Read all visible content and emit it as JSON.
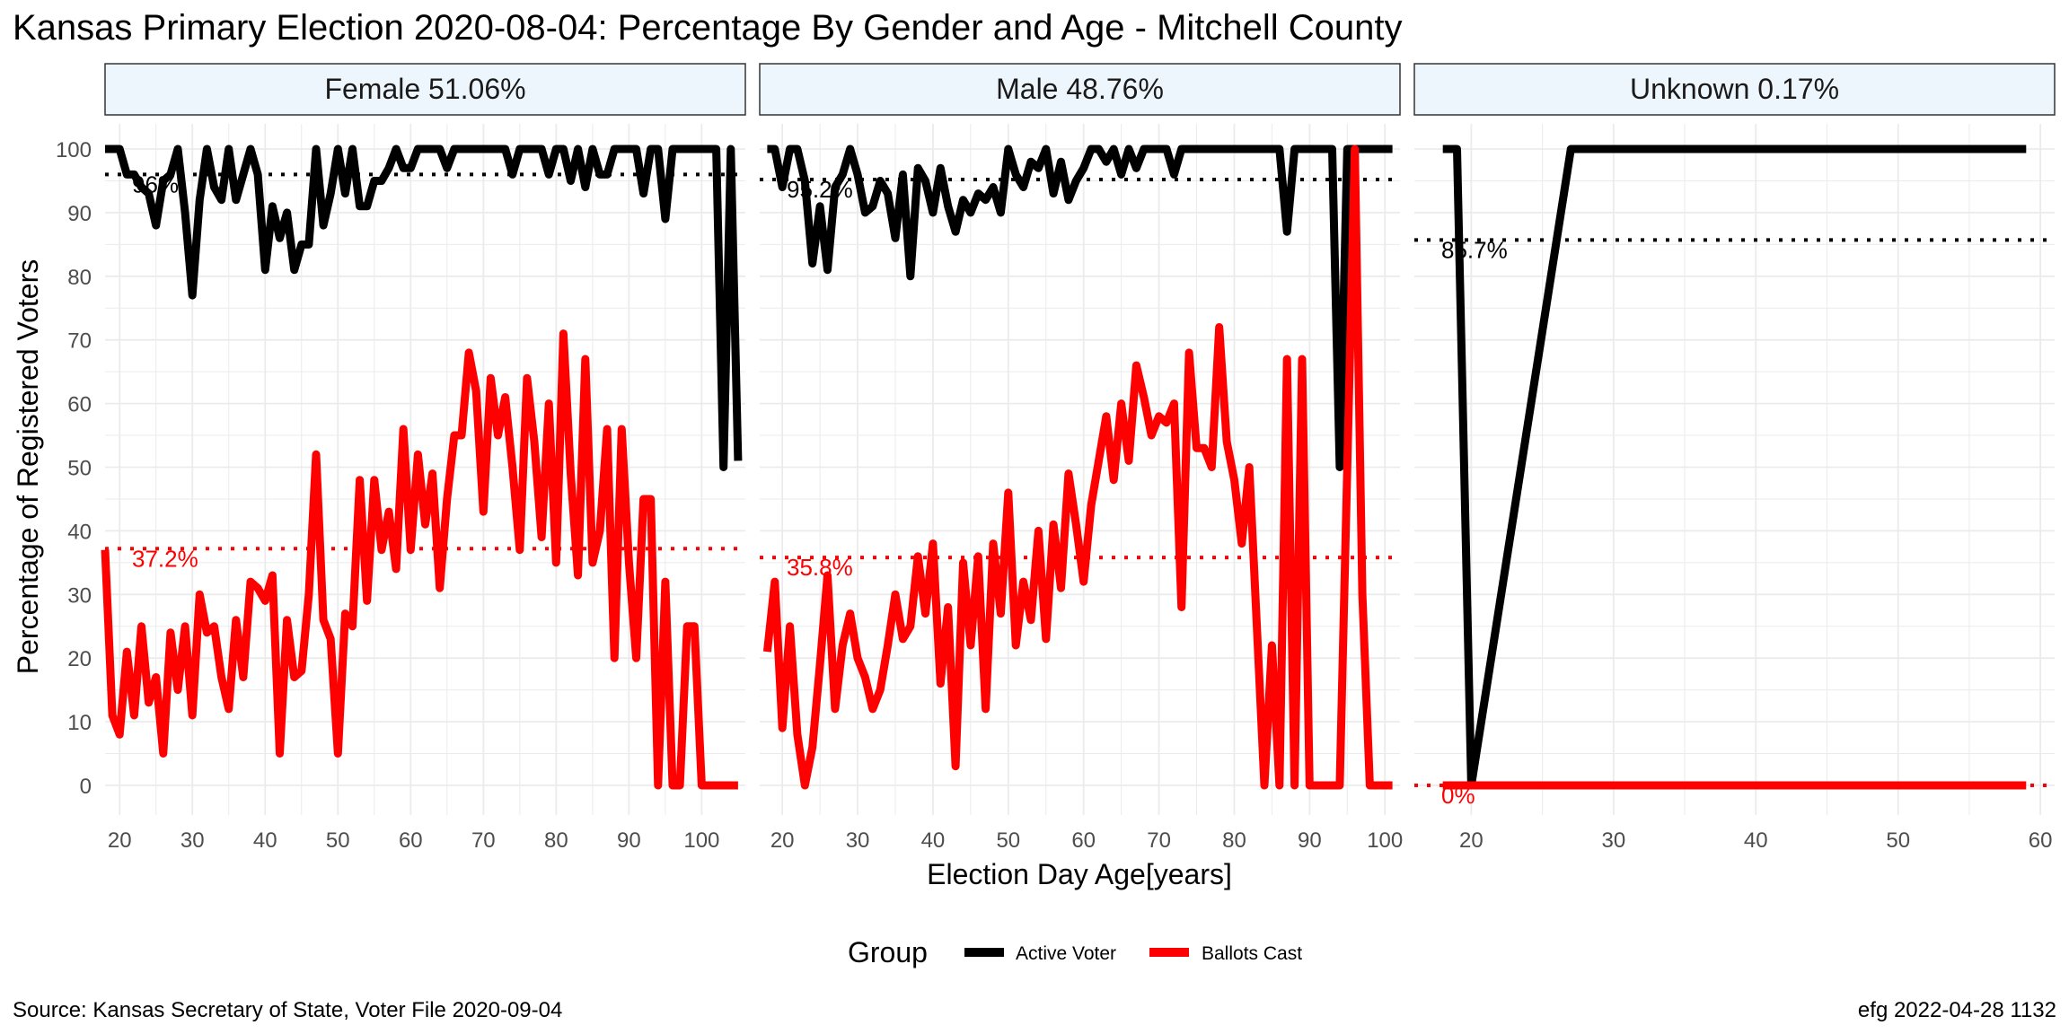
{
  "title": "Kansas Primary Election 2020-08-04:  Percentage By Gender and Age - Mitchell County",
  "caption_left": "Source:  Kansas Secretary of State, Voter File  2020-09-04",
  "caption_right": "efg 2022-04-28 1132",
  "colors": {
    "active": "#000000",
    "ballots": "#ff0000",
    "strip_fill": "#eef6fd",
    "grid": "#ebebeb"
  },
  "chart_data": {
    "type": "line",
    "xlabel": "Election Day Age[years]",
    "ylabel": "Percentage of Registered Voters",
    "ylim": [
      0,
      100
    ],
    "yticks": [
      0,
      10,
      20,
      30,
      40,
      50,
      60,
      70,
      80,
      90,
      100
    ],
    "grid": true,
    "legend": {
      "title": "Group",
      "position": "bottom",
      "entries": [
        "Active Voter",
        "Ballots Cast"
      ]
    },
    "panels": [
      {
        "label": "Female 51.06%",
        "xlim": [
          18,
          106
        ],
        "xticks": [
          20,
          30,
          40,
          50,
          60,
          70,
          80,
          90,
          100
        ],
        "ref_lines": [
          {
            "series": "Active Voter",
            "value": 96,
            "label": "96%"
          },
          {
            "series": "Ballots Cast",
            "value": 37.2,
            "label": "37.2%"
          }
        ],
        "series": [
          {
            "name": "Active Voter",
            "x": [
              18,
              19,
              20,
              21,
              22,
              23,
              24,
              25,
              26,
              27,
              28,
              29,
              30,
              31,
              32,
              33,
              34,
              35,
              36,
              37,
              38,
              39,
              40,
              41,
              42,
              43,
              44,
              45,
              46,
              47,
              48,
              49,
              50,
              51,
              52,
              53,
              54,
              55,
              56,
              57,
              58,
              59,
              60,
              61,
              62,
              63,
              64,
              65,
              66,
              67,
              68,
              69,
              70,
              71,
              72,
              73,
              74,
              75,
              76,
              77,
              78,
              79,
              80,
              81,
              82,
              83,
              84,
              85,
              86,
              87,
              88,
              89,
              90,
              91,
              92,
              93,
              94,
              95,
              96,
              97,
              98,
              99,
              100,
              101,
              102,
              103,
              104,
              105
            ],
            "y": [
              100,
              100,
              100,
              96,
              96,
              94,
              93,
              88,
              95,
              96,
              100,
              90,
              77,
              92,
              100,
              94,
              92,
              100,
              92,
              96,
              100,
              96,
              81,
              91,
              86,
              90,
              81,
              85,
              85,
              100,
              88,
              93,
              100,
              93,
              100,
              91,
              91,
              95,
              95,
              97,
              100,
              97,
              97,
              100,
              100,
              100,
              100,
              97,
              100,
              100,
              100,
              100,
              100,
              100,
              100,
              100,
              96,
              100,
              100,
              100,
              100,
              96,
              100,
              100,
              95,
              100,
              94,
              100,
              96,
              96,
              100,
              100,
              100,
              100,
              93,
              100,
              100,
              89,
              100,
              100,
              100,
              100,
              100,
              100,
              100,
              50,
              100,
              51
            ]
          },
          {
            "name": "Ballots Cast",
            "x": [
              18,
              19,
              20,
              21,
              22,
              23,
              24,
              25,
              26,
              27,
              28,
              29,
              30,
              31,
              32,
              33,
              34,
              35,
              36,
              37,
              38,
              39,
              40,
              41,
              42,
              43,
              44,
              45,
              46,
              47,
              48,
              49,
              50,
              51,
              52,
              53,
              54,
              55,
              56,
              57,
              58,
              59,
              60,
              61,
              62,
              63,
              64,
              65,
              66,
              67,
              68,
              69,
              70,
              71,
              72,
              73,
              74,
              75,
              76,
              77,
              78,
              79,
              80,
              81,
              82,
              83,
              84,
              85,
              86,
              87,
              88,
              89,
              90,
              91,
              92,
              93,
              94,
              95,
              96,
              97,
              98,
              99,
              100,
              101,
              102,
              103,
              104,
              105
            ],
            "y": [
              37,
              11,
              8,
              21,
              11,
              25,
              13,
              17,
              5,
              24,
              15,
              25,
              11,
              30,
              24,
              25,
              17,
              12,
              26,
              17,
              32,
              31,
              29,
              33,
              5,
              26,
              17,
              18,
              30,
              52,
              26,
              23,
              5,
              27,
              25,
              48,
              29,
              48,
              37,
              43,
              34,
              56,
              37,
              52,
              41,
              49,
              31,
              45,
              55,
              55,
              68,
              62,
              43,
              64,
              55,
              61,
              50,
              37,
              64,
              54,
              39,
              60,
              35,
              71,
              49,
              33,
              67,
              35,
              40,
              56,
              20,
              56,
              35,
              20,
              45,
              45,
              0,
              32,
              0,
              0,
              25,
              25,
              0,
              0,
              0,
              0,
              0,
              0
            ]
          }
        ]
      },
      {
        "label": "Male 48.76%",
        "xlim": [
          17,
          102
        ],
        "xticks": [
          20,
          30,
          40,
          50,
          60,
          70,
          80,
          90,
          100
        ],
        "ref_lines": [
          {
            "series": "Active Voter",
            "value": 95.2,
            "label": "95.2%"
          },
          {
            "series": "Ballots Cast",
            "value": 35.8,
            "label": "35.8%"
          }
        ],
        "series": [
          {
            "name": "Active Voter",
            "x": [
              18,
              19,
              20,
              21,
              22,
              23,
              24,
              25,
              26,
              27,
              28,
              29,
              30,
              31,
              32,
              33,
              34,
              35,
              36,
              37,
              38,
              39,
              40,
              41,
              42,
              43,
              44,
              45,
              46,
              47,
              48,
              49,
              50,
              51,
              52,
              53,
              54,
              55,
              56,
              57,
              58,
              59,
              60,
              61,
              62,
              63,
              64,
              65,
              66,
              67,
              68,
              69,
              70,
              71,
              72,
              73,
              74,
              75,
              76,
              77,
              78,
              79,
              80,
              81,
              82,
              83,
              84,
              85,
              86,
              87,
              88,
              89,
              90,
              91,
              92,
              93,
              94,
              95,
              96,
              97,
              98,
              99,
              100,
              101
            ],
            "y": [
              100,
              100,
              94,
              100,
              100,
              95,
              82,
              91,
              81,
              94,
              96,
              100,
              96,
              90,
              91,
              95,
              93,
              86,
              96,
              80,
              97,
              95,
              90,
              97,
              91,
              87,
              92,
              90,
              93,
              92,
              94,
              90,
              100,
              96,
              94,
              98,
              97,
              100,
              93,
              98,
              92,
              95,
              97,
              100,
              100,
              98,
              100,
              96,
              100,
              97,
              100,
              100,
              100,
              100,
              96,
              100,
              100,
              100,
              100,
              100,
              100,
              100,
              100,
              100,
              100,
              100,
              100,
              100,
              100,
              87,
              100,
              100,
              100,
              100,
              100,
              100,
              50,
              100,
              100,
              100,
              100,
              100,
              100,
              100
            ]
          },
          {
            "name": "Ballots Cast",
            "x": [
              18,
              19,
              20,
              21,
              22,
              23,
              24,
              25,
              26,
              27,
              28,
              29,
              30,
              31,
              32,
              33,
              34,
              35,
              36,
              37,
              38,
              39,
              40,
              41,
              42,
              43,
              44,
              45,
              46,
              47,
              48,
              49,
              50,
              51,
              52,
              53,
              54,
              55,
              56,
              57,
              58,
              59,
              60,
              61,
              62,
              63,
              64,
              65,
              66,
              67,
              68,
              69,
              70,
              71,
              72,
              73,
              74,
              75,
              76,
              77,
              78,
              79,
              80,
              81,
              82,
              83,
              84,
              85,
              86,
              87,
              88,
              89,
              90,
              91,
              92,
              93,
              94,
              95,
              96,
              97,
              98,
              99,
              100,
              101
            ],
            "y": [
              21,
              32,
              9,
              25,
              8,
              0,
              6,
              19,
              33,
              12,
              22,
              27,
              20,
              17,
              12,
              15,
              22,
              30,
              23,
              25,
              36,
              27,
              38,
              16,
              28,
              3,
              35,
              22,
              36,
              12,
              38,
              27,
              46,
              22,
              32,
              26,
              40,
              23,
              41,
              31,
              49,
              41,
              32,
              44,
              51,
              58,
              48,
              60,
              51,
              66,
              61,
              55,
              58,
              57,
              60,
              28,
              68,
              53,
              53,
              50,
              72,
              54,
              48,
              38,
              50,
              25,
              0,
              22,
              0,
              67,
              0,
              67,
              0,
              0,
              0,
              0,
              0,
              50,
              100,
              30,
              0,
              0,
              0,
              0
            ]
          }
        ]
      },
      {
        "label": "Unknown 0.17%",
        "xlim": [
          16,
          61
        ],
        "xticks": [
          20,
          30,
          40,
          50,
          60
        ],
        "ref_lines": [
          {
            "series": "Active Voter",
            "value": 85.7,
            "label": "85.7%"
          },
          {
            "series": "Ballots Cast",
            "value": 0,
            "label": "0%"
          }
        ],
        "series": [
          {
            "name": "Active Voter",
            "x": [
              18,
              19,
              20,
              27,
              28,
              30,
              35,
              40,
              45,
              50,
              55,
              59
            ],
            "y": [
              100,
              100,
              0,
              100,
              100,
              100,
              100,
              100,
              100,
              100,
              100,
              100
            ]
          },
          {
            "name": "Ballots Cast",
            "x": [
              18,
              19,
              20,
              27,
              28,
              30,
              35,
              40,
              45,
              50,
              55,
              59
            ],
            "y": [
              0,
              0,
              0,
              0,
              0,
              0,
              0,
              0,
              0,
              0,
              0,
              0
            ]
          }
        ]
      }
    ]
  }
}
